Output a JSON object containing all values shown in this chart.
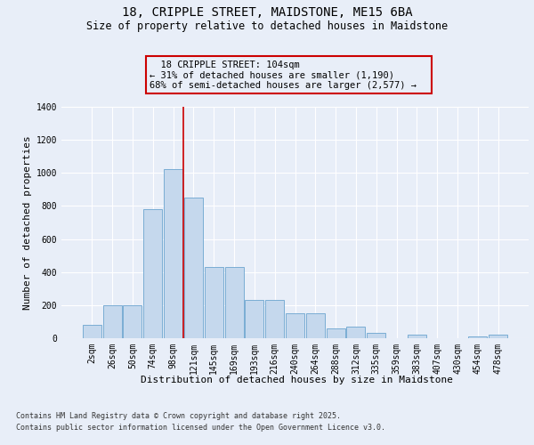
{
  "title": "18, CRIPPLE STREET, MAIDSTONE, ME15 6BA",
  "subtitle": "Size of property relative to detached houses in Maidstone",
  "xlabel": "Distribution of detached houses by size in Maidstone",
  "ylabel": "Number of detached properties",
  "footnote1": "Contains HM Land Registry data © Crown copyright and database right 2025.",
  "footnote2": "Contains public sector information licensed under the Open Government Licence v3.0.",
  "bar_color": "#c5d8ed",
  "bar_edge_color": "#7aadd4",
  "bg_color": "#e8eef8",
  "grid_color": "#ffffff",
  "vline_color": "#cc0000",
  "box_edge_color": "#cc0000",
  "categories": [
    "2sqm",
    "26sqm",
    "50sqm",
    "74sqm",
    "98sqm",
    "121sqm",
    "145sqm",
    "169sqm",
    "193sqm",
    "216sqm",
    "240sqm",
    "264sqm",
    "288sqm",
    "312sqm",
    "335sqm",
    "359sqm",
    "383sqm",
    "407sqm",
    "430sqm",
    "454sqm",
    "478sqm"
  ],
  "values": [
    80,
    200,
    200,
    780,
    1025,
    850,
    430,
    430,
    230,
    230,
    150,
    150,
    60,
    70,
    30,
    0,
    20,
    0,
    0,
    10,
    20
  ],
  "annotation_line1": "18 CRIPPLE STREET: 104sqm",
  "annotation_line2": "← 31% of detached houses are smaller (1,190)",
  "annotation_line3": "68% of semi-detached houses are larger (2,577) →",
  "vline_x_index": 4,
  "ylim_max": 1400,
  "title_fontsize": 10,
  "subtitle_fontsize": 8.5,
  "ylabel_fontsize": 8,
  "xlabel_fontsize": 8,
  "tick_fontsize": 7,
  "annot_fontsize": 7.5
}
